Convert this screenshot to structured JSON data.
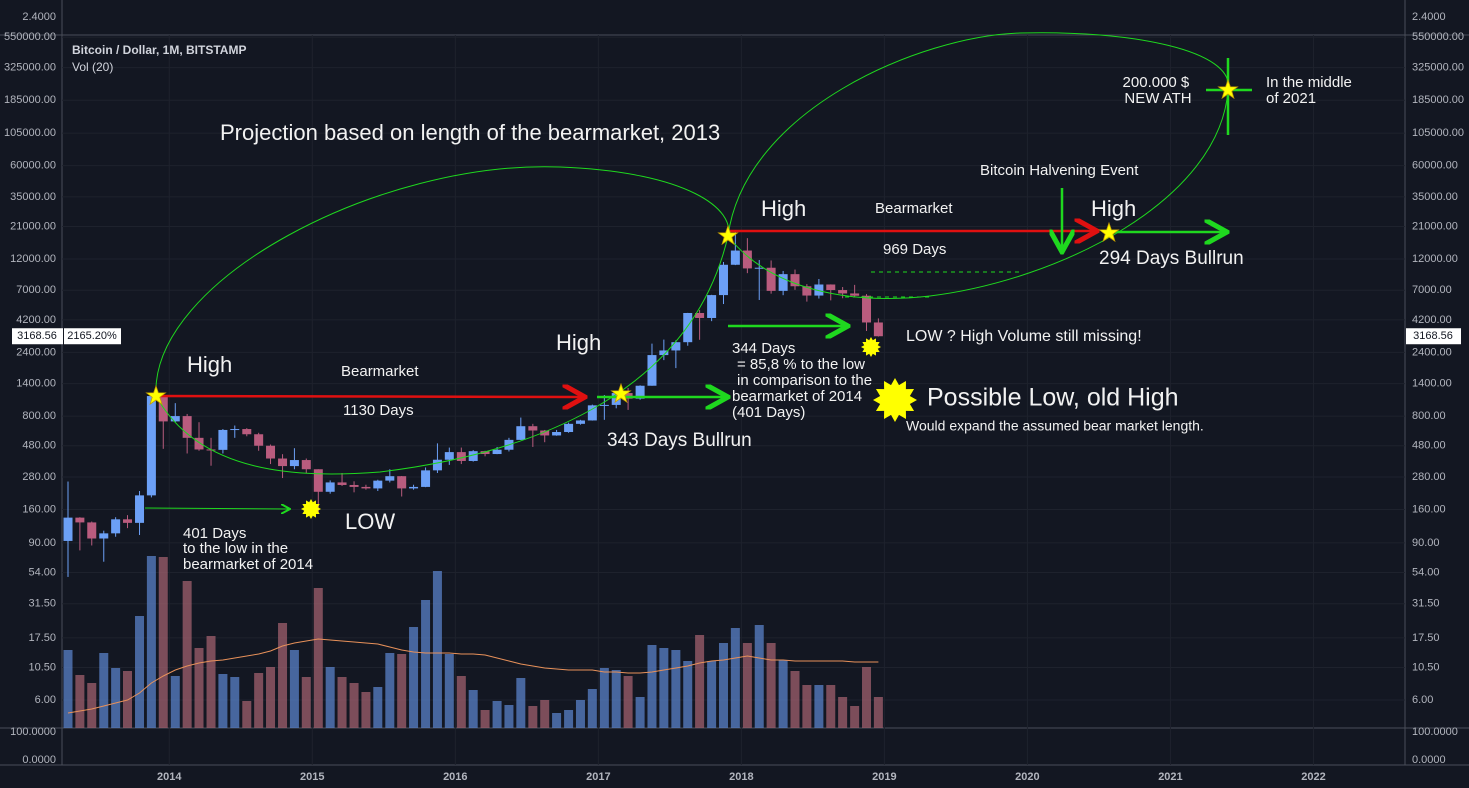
{
  "header": {
    "symbol": "Bitcoin / Dollar, 1M, BITSTAMP",
    "indicator": "Vol (20)"
  },
  "chart_data": {
    "type": "candlestick",
    "log_y": true,
    "grid": true,
    "up_color": "#6ca0f6",
    "down_color": "#b95c7e",
    "volume_up_color": "#5a82c8",
    "volume_down_color": "#a0606e",
    "ma_color": "#e8915a",
    "xlim": [
      2013.25,
      2022.64
    ],
    "xticks": [
      2014,
      2015,
      2016,
      2017,
      2018,
      2019,
      2020,
      2021,
      2022
    ],
    "ylim": [
      3.7,
      570000
    ],
    "yticks": [
      {
        "value": 550000,
        "label": "550000.00"
      },
      {
        "value": 325000,
        "label": "325000.00"
      },
      {
        "value": 185000,
        "label": "185000.00"
      },
      {
        "value": 105000,
        "label": "105000.00"
      },
      {
        "value": 60000,
        "label": "60000.00"
      },
      {
        "value": 35000,
        "label": "35000.00"
      },
      {
        "value": 21000,
        "label": "21000.00"
      },
      {
        "value": 12000,
        "label": "12000.00"
      },
      {
        "value": 7000,
        "label": "7000.00"
      },
      {
        "value": 4200,
        "label": "4200.00"
      },
      {
        "value": 2400,
        "label": "2400.00"
      },
      {
        "value": 1400,
        "label": "1400.00"
      },
      {
        "value": 800,
        "label": "800.00"
      },
      {
        "value": 480,
        "label": "480.00"
      },
      {
        "value": 280,
        "label": "280.00"
      },
      {
        "value": 160,
        "label": "160.00"
      },
      {
        "value": 90,
        "label": "90.00"
      },
      {
        "value": 54,
        "label": "54.00"
      },
      {
        "value": 31.5,
        "label": "31.50"
      },
      {
        "value": 17.5,
        "label": "17.50"
      },
      {
        "value": 10.5,
        "label": "10.50"
      },
      {
        "value": 6,
        "label": "6.00"
      }
    ],
    "top_pane_yticks": [
      {
        "value": 2.4,
        "label": "2.4000"
      }
    ],
    "bottom_pane_yticks": [
      {
        "value": 100,
        "label": "100.0000"
      },
      {
        "value": 0,
        "label": "0.0000"
      }
    ],
    "change_percent": {
      "value": 2165.2,
      "label": "2165.20%"
    },
    "x": [
      2013.292,
      2013.375,
      2013.458,
      2013.542,
      2013.625,
      2013.708,
      2013.792,
      2013.875,
      2013.958,
      2014.042,
      2014.125,
      2014.208,
      2014.292,
      2014.375,
      2014.458,
      2014.542,
      2014.625,
      2014.708,
      2014.792,
      2014.875,
      2014.958,
      2015.042,
      2015.125,
      2015.208,
      2015.292,
      2015.375,
      2015.458,
      2015.542,
      2015.625,
      2015.708,
      2015.792,
      2015.875,
      2015.958,
      2016.042,
      2016.125,
      2016.208,
      2016.292,
      2016.375,
      2016.458,
      2016.542,
      2016.625,
      2016.708,
      2016.792,
      2016.875,
      2016.958,
      2017.042,
      2017.125,
      2017.208,
      2017.292,
      2017.375,
      2017.458,
      2017.542,
      2017.625,
      2017.708,
      2017.792,
      2017.875,
      2017.958,
      2018.042,
      2018.125,
      2018.208,
      2018.292,
      2018.375,
      2018.458,
      2018.542,
      2018.625,
      2018.708,
      2018.792,
      2018.875,
      2018.958
    ],
    "open": [
      93,
      139,
      128,
      97,
      106,
      135,
      127,
      204,
      1130,
      730,
      800,
      550,
      450,
      447,
      630,
      640,
      585,
      480,
      385,
      338,
      375,
      320,
      217,
      255,
      244,
      236,
      230,
      263,
      284,
      230,
      236,
      314,
      377,
      430,
      369,
      437,
      416,
      448,
      531,
      672,
      624,
      573,
      608,
      700,
      742,
      963,
      970,
      1190,
      1080,
      1350,
      2290,
      2480,
      2860,
      4730,
      4340,
      6440,
      10860,
      13880,
      10200,
      10320,
      6925,
      9240,
      7500,
      6390,
      7730,
      7025,
      6625,
      6370,
      4017
    ],
    "high": [
      259,
      140,
      130,
      111,
      140,
      145,
      220,
      1163,
      1150,
      1000,
      830,
      720,
      550,
      640,
      680,
      650,
      600,
      490,
      415,
      460,
      385,
      320,
      264,
      300,
      260,
      245,
      267,
      320,
      285,
      245,
      330,
      500,
      465,
      465,
      445,
      440,
      470,
      550,
      780,
      700,
      630,
      630,
      715,
      750,
      975,
      1150,
      1210,
      1300,
      1360,
      2790,
      2990,
      2950,
      4740,
      4970,
      6470,
      11400,
      19666,
      17180,
      11790,
      11700,
      9760,
      10000,
      7780,
      8500,
      7750,
      7400,
      7680,
      6550,
      4310
    ],
    "low": [
      50,
      79,
      86,
      65,
      100,
      116,
      103,
      197,
      455,
      720,
      420,
      440,
      340,
      420,
      550,
      565,
      440,
      350,
      275,
      320,
      300,
      152,
      210,
      240,
      215,
      225,
      220,
      255,
      200,
      225,
      235,
      300,
      345,
      350,
      365,
      400,
      415,
      435,
      530,
      470,
      510,
      570,
      600,
      690,
      740,
      750,
      915,
      890,
      1060,
      1350,
      2100,
      1830,
      2690,
      2980,
      4110,
      5520,
      10800,
      9400,
      5920,
      6600,
      6430,
      7050,
      5755,
      6070,
      5880,
      6100,
      6200,
      3470,
      3150
    ],
    "close": [
      139,
      128,
      97,
      106,
      135,
      127,
      204,
      1130,
      730,
      800,
      550,
      450,
      447,
      630,
      640,
      585,
      480,
      385,
      338,
      375,
      320,
      217,
      255,
      244,
      236,
      230,
      263,
      284,
      230,
      236,
      314,
      377,
      430,
      369,
      437,
      416,
      448,
      531,
      672,
      624,
      573,
      608,
      700,
      742,
      963,
      970,
      1190,
      1080,
      1350,
      2290,
      2480,
      2860,
      4730,
      4340,
      6440,
      10860,
      13880,
      10200,
      10320,
      6925,
      9240,
      7500,
      6390,
      7730,
      7025,
      6625,
      6370,
      4017,
      3168.56
    ],
    "volume": [
      78,
      53,
      45,
      75,
      60,
      57,
      112,
      172,
      171,
      52,
      147,
      80,
      92,
      54,
      51,
      27,
      55,
      61,
      105,
      78,
      51,
      140,
      61,
      51,
      45,
      36,
      41,
      75,
      74,
      101,
      128,
      157,
      74,
      52,
      38,
      18,
      27,
      23,
      50,
      22,
      28,
      15,
      18,
      28,
      39,
      60,
      58,
      52,
      31,
      83,
      80,
      78,
      67,
      93,
      67,
      85,
      100,
      85,
      103,
      85,
      68,
      57,
      43,
      43,
      43,
      31,
      22,
      61,
      31
    ],
    "volume_ma": [
      15,
      17,
      19,
      22,
      25,
      28,
      35,
      45,
      52,
      58,
      62,
      65,
      67,
      68,
      70,
      72,
      74,
      77,
      82,
      85,
      87,
      89,
      88,
      87,
      86,
      85,
      84,
      81,
      78,
      76,
      75,
      75,
      75,
      74,
      74,
      73,
      70,
      67,
      64,
      62,
      60,
      59,
      58,
      58,
      58,
      56,
      56,
      55,
      55,
      56,
      58,
      60,
      62,
      65,
      67,
      68,
      70,
      72,
      70,
      68,
      68,
      67,
      67,
      67,
      67,
      67,
      66,
      66,
      66
    ]
  },
  "annotations": [
    "Projection based on length of the bearmarket, 2013",
    "High",
    "Bearmarket",
    "1130 Days",
    [
      "401 Days",
      "to the low in the",
      "bearmarket of 2014"
    ],
    "LOW",
    "High",
    "343 Days Bullrun",
    [
      "344 Days",
      "= 85,8 % to the low",
      "in comparison to the",
      "bearmarket of 2014",
      "(401 Days)"
    ],
    "Possible Low, old High",
    "Would expand the assumed bear market length.",
    "LOW ? High Volume still missing!",
    "High",
    "Bearmarket",
    "969 Days",
    "Bitcoin Halvening Event",
    "High",
    "294 Days Bullrun",
    [
      "200.000 $",
      "NEW ATH"
    ],
    [
      "In the middle",
      "of 2021"
    ]
  ]
}
